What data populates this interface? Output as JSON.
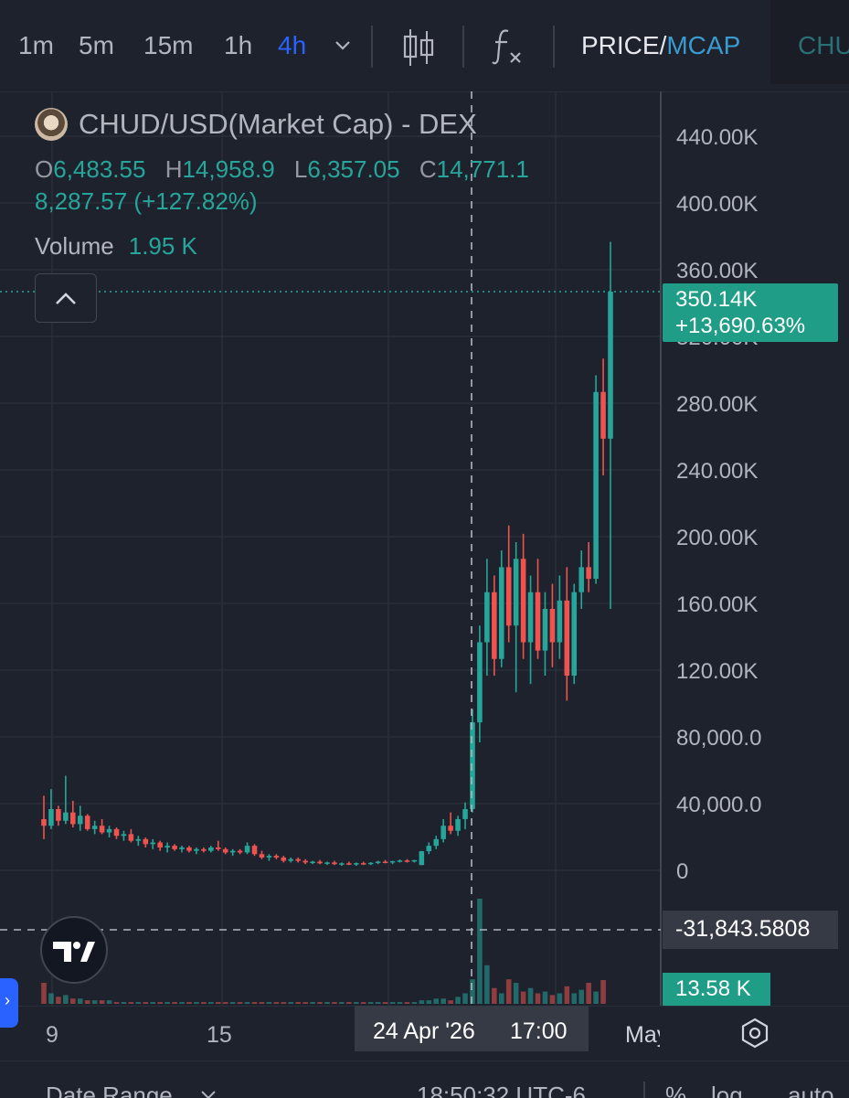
{
  "toolbar": {
    "timeframes": [
      "1m",
      "5m",
      "15m",
      "1h",
      "4h"
    ],
    "active_timeframe": "4h",
    "price_label": "PRICE",
    "separator": "/",
    "mcap_label": "MCAP",
    "symbol_tab": "CHUD",
    "indicator_icon": "fx-icon",
    "candles_icon": "candlestick-icon"
  },
  "legend": {
    "symbol": "CHUD/USD(Market Cap) - DEX",
    "open_label": "O",
    "open": "6,483.55",
    "high_label": "H",
    "high": "14,958.9",
    "low_label": "L",
    "low": "6,357.05",
    "close_label": "C",
    "close": "14,771.1",
    "change": "8,287.57 (+127.82%)",
    "volume_label": "Volume",
    "volume": "1.95 K"
  },
  "badges": {
    "last_price": "350.14K",
    "last_change": "+13,690.63%",
    "crosshair_price": "-31,843.5808",
    "volume_last": "13.58 K",
    "crosshair_date": "24 Apr '26",
    "crosshair_time": "17:00"
  },
  "bottom_bar": {
    "date_range": "Date Range",
    "clock": "18:50:32 UTC-6",
    "percent": "%",
    "log": "log",
    "auto": "auto"
  },
  "colors": {
    "up": "#26a69a",
    "down": "#ef5350",
    "background": "#1e222d",
    "grid": "#2a2e39",
    "active_tab": "#2962ff",
    "mcap": "#3a9bd0"
  },
  "chart_data": {
    "type": "candlestick",
    "title": "CHUD/USD(Market Cap) - DEX",
    "interval": "4h",
    "y_axis_ticks": [
      "440.00K",
      "400.00K",
      "360.00K",
      "320.00K",
      "280.00K",
      "240.00K",
      "200.00K",
      "160.00K",
      "120.00K",
      "80,000.0",
      "40,000.0",
      "0"
    ],
    "ylim": [
      -31843.58,
      440000
    ],
    "x_axis_ticks": [
      "9",
      "15",
      "24 Apr '26  17:00",
      "May"
    ],
    "grid": true,
    "last_value": 350140,
    "last_change_pct": 13690.63,
    "candles": [
      [
        34000,
        48000,
        22000,
        30000
      ],
      [
        30000,
        52000,
        28000,
        40000
      ],
      [
        40000,
        42000,
        30000,
        33000
      ],
      [
        33000,
        60000,
        31000,
        38000
      ],
      [
        38000,
        45000,
        29000,
        31000
      ],
      [
        31000,
        42000,
        27000,
        36000
      ],
      [
        36000,
        37000,
        27000,
        28000
      ],
      [
        28000,
        33000,
        25000,
        30000
      ],
      [
        30000,
        34000,
        25000,
        26000
      ],
      [
        26000,
        30000,
        23000,
        28000
      ],
      [
        28000,
        29000,
        22000,
        24000
      ],
      [
        24000,
        27000,
        21000,
        25000
      ],
      [
        25000,
        28000,
        20000,
        21000
      ],
      [
        21000,
        24000,
        18000,
        22000
      ],
      [
        22000,
        23000,
        17000,
        19000
      ],
      [
        19000,
        22000,
        16000,
        20000
      ],
      [
        20000,
        21000,
        15000,
        17000
      ],
      [
        17000,
        20000,
        14000,
        18000
      ],
      [
        18000,
        19000,
        15000,
        16000
      ],
      [
        16000,
        18000,
        14000,
        17000
      ],
      [
        17000,
        18000,
        14000,
        15000
      ],
      [
        15000,
        17000,
        13000,
        16000
      ],
      [
        16000,
        17000,
        14000,
        15000
      ],
      [
        15000,
        18000,
        14000,
        17000
      ],
      [
        17000,
        21000,
        15000,
        16000
      ],
      [
        16000,
        17000,
        13000,
        14000
      ],
      [
        14000,
        16000,
        12000,
        15000
      ],
      [
        15000,
        16000,
        13000,
        14000
      ],
      [
        14000,
        20000,
        13000,
        18000
      ],
      [
        18000,
        19000,
        12000,
        13000
      ],
      [
        13000,
        15000,
        10000,
        11000
      ],
      [
        11000,
        13000,
        9000,
        12000
      ],
      [
        12000,
        13000,
        10000,
        11000
      ],
      [
        11000,
        12000,
        8000,
        9000
      ],
      [
        9000,
        11000,
        8000,
        10000
      ],
      [
        10000,
        11000,
        8000,
        9000
      ],
      [
        9000,
        10000,
        7000,
        8000
      ],
      [
        8000,
        9000,
        7000,
        8500
      ],
      [
        8500,
        9500,
        7000,
        7500
      ],
      [
        7500,
        8500,
        6500,
        8000
      ],
      [
        8000,
        9000,
        6500,
        7000
      ],
      [
        7000,
        8000,
        6000,
        7500
      ],
      [
        7500,
        8500,
        6500,
        7000
      ],
      [
        7000,
        8000,
        6000,
        7600
      ],
      [
        7600,
        8500,
        6500,
        7200
      ],
      [
        7200,
        8200,
        6500,
        7800
      ],
      [
        7800,
        9000,
        7000,
        8500
      ],
      [
        8500,
        9500,
        7500,
        8000
      ],
      [
        8000,
        9000,
        7000,
        8800
      ],
      [
        8800,
        9800,
        8000,
        9200
      ],
      [
        9200,
        10000,
        8000,
        8600
      ],
      [
        8600,
        9600,
        8000,
        9400
      ],
      [
        6483.55,
        14958.9,
        6357.05,
        14771.1
      ],
      [
        14771,
        20000,
        13000,
        18000
      ],
      [
        18000,
        24000,
        16000,
        22000
      ],
      [
        22000,
        34000,
        20000,
        30000
      ],
      [
        30000,
        38000,
        25000,
        27000
      ],
      [
        27000,
        36000,
        24000,
        34000
      ],
      [
        34000,
        44000,
        28000,
        40000
      ],
      [
        40000,
        100000,
        38000,
        92000
      ],
      [
        92000,
        150000,
        80000,
        140000
      ],
      [
        140000,
        190000,
        120000,
        170000
      ],
      [
        170000,
        180000,
        120000,
        130000
      ],
      [
        130000,
        195000,
        125000,
        185000
      ],
      [
        185000,
        210000,
        140000,
        150000
      ],
      [
        150000,
        200000,
        110000,
        190000
      ],
      [
        190000,
        205000,
        130000,
        140000
      ],
      [
        140000,
        180000,
        115000,
        170000
      ],
      [
        170000,
        190000,
        130000,
        135000
      ],
      [
        135000,
        170000,
        120000,
        160000
      ],
      [
        160000,
        175000,
        125000,
        140000
      ],
      [
        140000,
        180000,
        130000,
        165000
      ],
      [
        165000,
        185000,
        105000,
        120000
      ],
      [
        120000,
        175000,
        115000,
        170000
      ],
      [
        170000,
        195000,
        160000,
        185000
      ],
      [
        185000,
        200000,
        170000,
        178000
      ],
      [
        178000,
        300000,
        175000,
        290000
      ],
      [
        290000,
        310000,
        240000,
        262000
      ],
      [
        262000,
        380000,
        160000,
        350140
      ]
    ],
    "volume": [
      12,
      6,
      4,
      5,
      3,
      3,
      2,
      2,
      2,
      2,
      1,
      1,
      1,
      1,
      1,
      1,
      1,
      1,
      1,
      1,
      1,
      1,
      1,
      1,
      1,
      1,
      1,
      1,
      1,
      1,
      1,
      1,
      1,
      1,
      1,
      1,
      1,
      1,
      1,
      1,
      1,
      1,
      1,
      1,
      1,
      1,
      1,
      1,
      1,
      1,
      1,
      1,
      2,
      2,
      3,
      3,
      2,
      4,
      6,
      14,
      60,
      22,
      9,
      6,
      14,
      12,
      7,
      9,
      6,
      7,
      5,
      6,
      10,
      6,
      8,
      12,
      7,
      13.58
    ]
  }
}
